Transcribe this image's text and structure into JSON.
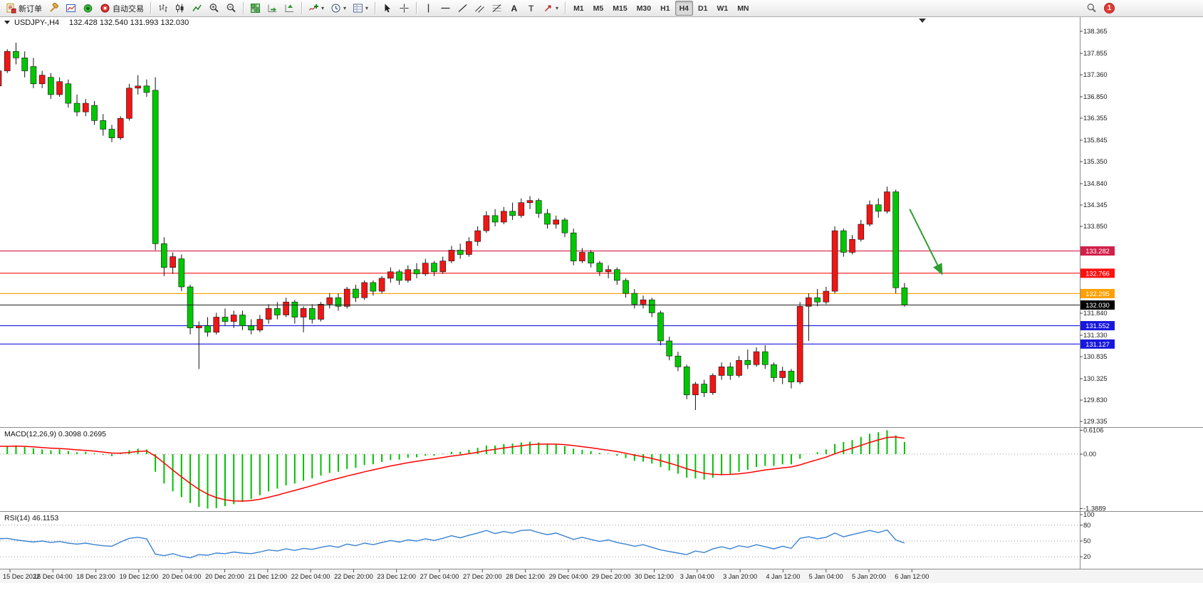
{
  "toolbar": {
    "new_order_label": "新订单",
    "auto_trading_label": "自动交易",
    "timeframes": [
      "M1",
      "M5",
      "M15",
      "M30",
      "H1",
      "H4",
      "D1",
      "W1",
      "MN"
    ],
    "active_timeframe": "H4",
    "notification_badge": "1",
    "icon_names": [
      "new-order",
      "metaeditor",
      "new-chart",
      "market-watch",
      "autotrading",
      "bar-chart",
      "candlestick-chart",
      "line-chart",
      "zoom-in",
      "zoom-out",
      "tile-windows",
      "auto-scroll",
      "chart-shift",
      "indicators",
      "periods",
      "templates",
      "cursor",
      "crosshair",
      "vertical-line",
      "horizontal-line",
      "trendline",
      "equidistant-channel",
      "fibonacci",
      "text",
      "text-label",
      "arrows",
      "search",
      "notifications"
    ]
  },
  "chart_data": {
    "type": "candlestick",
    "symbol": "USDJPY-",
    "period": "H4",
    "title_line": "USDJPY-,H4",
    "ohlc_line": "132.428 132.540 131.993 132.030",
    "ohlc_display": {
      "open": "132.428",
      "high": "132.540",
      "low": "131.993",
      "close": "132.030"
    },
    "ylim": [
      129.22,
      138.7
    ],
    "grid": false,
    "up_color": "#f01616",
    "down_color": "#00c800",
    "wick_color": "#111111",
    "price_axis_labels": [
      "138.365",
      "137.855",
      "137.360",
      "136.850",
      "136.355",
      "135.845",
      "135.350",
      "134.840",
      "134.345",
      "133.850",
      "131.840",
      "131.330",
      "130.835",
      "130.325",
      "129.830",
      "129.335"
    ],
    "price_lines": [
      {
        "price": 133.282,
        "label": "133.282",
        "color": "#d2204a"
      },
      {
        "price": 132.766,
        "label": "132.766",
        "color": "#ff1010"
      },
      {
        "price": 132.295,
        "label": "132.295",
        "color": "#ffa000"
      },
      {
        "price": 131.552,
        "label": "131.552",
        "color": "#1717dd"
      },
      {
        "price": 131.127,
        "label": "131.127",
        "color": "#1717dd"
      }
    ],
    "current_price": {
      "price": 132.03,
      "label": "132.030",
      "color": "#000000",
      "text_color": "#ffffff"
    },
    "annotation_arrow": {
      "start": {
        "bar": 104.6,
        "price": 134.25
      },
      "end": {
        "bar": 108.3,
        "price": 132.75
      },
      "color": "#2f9e2f"
    },
    "candles": [
      [
        137.1,
        137.55,
        137.0,
        137.45
      ],
      [
        137.45,
        137.95,
        137.4,
        137.9
      ],
      [
        137.9,
        138.1,
        137.6,
        137.75
      ],
      [
        137.75,
        137.9,
        137.3,
        137.45
      ],
      [
        137.55,
        137.75,
        137.05,
        137.15
      ],
      [
        137.15,
        137.45,
        137.05,
        137.35
      ],
      [
        137.3,
        137.4,
        136.8,
        136.9
      ],
      [
        136.9,
        137.3,
        136.85,
        137.2
      ],
      [
        137.15,
        137.25,
        136.6,
        136.7
      ],
      [
        136.7,
        136.9,
        136.4,
        136.5
      ],
      [
        136.5,
        136.8,
        136.4,
        136.7
      ],
      [
        136.65,
        136.75,
        136.2,
        136.3
      ],
      [
        136.3,
        136.45,
        135.95,
        136.1
      ],
      [
        136.1,
        136.2,
        135.8,
        135.9
      ],
      [
        135.9,
        136.4,
        135.85,
        136.35
      ],
      [
        136.35,
        137.15,
        136.3,
        137.05
      ],
      [
        137.05,
        137.35,
        136.9,
        137.1
      ],
      [
        137.1,
        137.25,
        136.85,
        136.95
      ],
      [
        137.0,
        137.3,
        133.3,
        133.45
      ],
      [
        133.45,
        133.6,
        132.7,
        132.9
      ],
      [
        132.9,
        133.25,
        132.75,
        133.15
      ],
      [
        133.1,
        133.2,
        132.35,
        132.45
      ],
      [
        132.45,
        132.5,
        131.35,
        131.5
      ],
      [
        131.5,
        131.65,
        130.55,
        131.55
      ],
      [
        131.55,
        131.75,
        131.3,
        131.4
      ],
      [
        131.4,
        131.85,
        131.35,
        131.75
      ],
      [
        131.75,
        131.95,
        131.55,
        131.65
      ],
      [
        131.65,
        131.9,
        131.5,
        131.8
      ],
      [
        131.8,
        131.9,
        131.45,
        131.55
      ],
      [
        131.55,
        131.7,
        131.35,
        131.45
      ],
      [
        131.45,
        131.8,
        131.4,
        131.7
      ],
      [
        131.7,
        132.05,
        131.6,
        131.95
      ],
      [
        131.95,
        132.1,
        131.7,
        131.8
      ],
      [
        131.8,
        132.2,
        131.75,
        132.1
      ],
      [
        132.1,
        132.15,
        131.6,
        131.75
      ],
      [
        131.75,
        132.0,
        131.4,
        131.95
      ],
      [
        131.95,
        132.05,
        131.6,
        131.7
      ],
      [
        131.7,
        132.1,
        131.65,
        132.05
      ],
      [
        132.05,
        132.3,
        131.95,
        132.2
      ],
      [
        132.2,
        132.3,
        131.9,
        132.0
      ],
      [
        132.0,
        132.45,
        131.95,
        132.4
      ],
      [
        132.4,
        132.5,
        132.1,
        132.2
      ],
      [
        132.2,
        132.6,
        132.15,
        132.55
      ],
      [
        132.55,
        132.6,
        132.25,
        132.35
      ],
      [
        132.35,
        132.7,
        132.3,
        132.65
      ],
      [
        132.65,
        132.9,
        132.55,
        132.8
      ],
      [
        132.8,
        132.85,
        132.5,
        132.6
      ],
      [
        132.6,
        132.95,
        132.55,
        132.85
      ],
      [
        132.85,
        133.0,
        132.65,
        132.75
      ],
      [
        132.75,
        133.1,
        132.7,
        133.0
      ],
      [
        133.0,
        133.05,
        132.7,
        132.8
      ],
      [
        132.8,
        133.15,
        132.75,
        133.05
      ],
      [
        133.05,
        133.4,
        133.0,
        133.3
      ],
      [
        133.3,
        133.45,
        133.1,
        133.2
      ],
      [
        133.2,
        133.6,
        133.15,
        133.5
      ],
      [
        133.5,
        133.85,
        133.4,
        133.75
      ],
      [
        133.75,
        134.2,
        133.7,
        134.1
      ],
      [
        134.1,
        134.25,
        133.85,
        133.95
      ],
      [
        133.95,
        134.3,
        133.9,
        134.2
      ],
      [
        134.2,
        134.4,
        134.0,
        134.1
      ],
      [
        134.1,
        134.5,
        134.05,
        134.4
      ],
      [
        134.4,
        134.55,
        134.25,
        134.45
      ],
      [
        134.45,
        134.5,
        134.05,
        134.15
      ],
      [
        134.15,
        134.25,
        133.8,
        133.9
      ],
      [
        133.9,
        134.1,
        133.8,
        134.0
      ],
      [
        134.0,
        134.05,
        133.6,
        133.7
      ],
      [
        133.7,
        133.8,
        132.95,
        133.05
      ],
      [
        133.05,
        133.35,
        133.0,
        133.25
      ],
      [
        133.25,
        133.3,
        132.9,
        133.0
      ],
      [
        133.0,
        133.05,
        132.7,
        132.8
      ],
      [
        132.8,
        132.95,
        132.65,
        132.85
      ],
      [
        132.85,
        132.9,
        132.5,
        132.6
      ],
      [
        132.6,
        132.65,
        132.2,
        132.3
      ],
      [
        132.3,
        132.4,
        131.95,
        132.05
      ],
      [
        132.05,
        132.25,
        131.95,
        132.15
      ],
      [
        132.15,
        132.2,
        131.75,
        131.85
      ],
      [
        131.85,
        131.9,
        131.1,
        131.2
      ],
      [
        131.2,
        131.3,
        130.75,
        130.85
      ],
      [
        130.85,
        130.95,
        130.5,
        130.6
      ],
      [
        130.6,
        130.65,
        129.85,
        129.95
      ],
      [
        129.95,
        130.25,
        129.6,
        130.2
      ],
      [
        130.2,
        130.3,
        129.9,
        130.0
      ],
      [
        130.0,
        130.45,
        129.95,
        130.4
      ],
      [
        130.4,
        130.7,
        130.3,
        130.6
      ],
      [
        130.6,
        130.7,
        130.3,
        130.4
      ],
      [
        130.4,
        130.85,
        130.35,
        130.75
      ],
      [
        130.75,
        131.0,
        130.55,
        130.65
      ],
      [
        130.65,
        131.05,
        130.6,
        130.95
      ],
      [
        130.95,
        131.1,
        130.55,
        130.65
      ],
      [
        130.65,
        130.7,
        130.25,
        130.35
      ],
      [
        130.35,
        130.6,
        130.2,
        130.5
      ],
      [
        130.5,
        130.55,
        130.1,
        130.25
      ],
      [
        130.25,
        132.1,
        130.2,
        132.0
      ],
      [
        132.0,
        132.3,
        131.2,
        132.2
      ],
      [
        132.2,
        132.4,
        132.0,
        132.1
      ],
      [
        132.1,
        132.45,
        132.05,
        132.35
      ],
      [
        132.35,
        133.85,
        132.3,
        133.75
      ],
      [
        133.75,
        133.8,
        133.15,
        133.25
      ],
      [
        133.25,
        133.65,
        133.2,
        133.55
      ],
      [
        133.55,
        134.0,
        133.5,
        133.9
      ],
      [
        133.9,
        134.45,
        133.85,
        134.35
      ],
      [
        134.35,
        134.5,
        134.05,
        134.2
      ],
      [
        134.2,
        134.77,
        134.15,
        134.65
      ],
      [
        134.65,
        134.7,
        132.3,
        132.43
      ],
      [
        132.428,
        132.54,
        131.993,
        132.03
      ]
    ],
    "macd": {
      "label": "MACD(12,26,9) 0.3098 0.2695",
      "histogram_color": "#00c000",
      "signal_color": "#ff0000",
      "ylim": [
        -1.3889,
        0.6106
      ],
      "axis": [
        {
          "text": "0.6106",
          "value": 0.6106
        },
        {
          "text": "0.00",
          "value": 0
        },
        {
          "text": "-1.3889",
          "value": -1.3889
        }
      ],
      "values": [
        0.2,
        0.2,
        0.22,
        0.18,
        0.15,
        0.12,
        0.1,
        0.12,
        0.08,
        0.05,
        0.06,
        0.02,
        -0.02,
        -0.05,
        0.02,
        0.1,
        0.14,
        0.12,
        -0.45,
        -0.75,
        -0.95,
        -1.1,
        -1.25,
        -1.35,
        -1.39,
        -1.38,
        -1.33,
        -1.28,
        -1.22,
        -1.15,
        -1.05,
        -0.95,
        -0.88,
        -0.8,
        -0.75,
        -0.68,
        -0.62,
        -0.55,
        -0.48,
        -0.45,
        -0.38,
        -0.35,
        -0.28,
        -0.26,
        -0.2,
        -0.15,
        -0.14,
        -0.09,
        -0.08,
        -0.04,
        -0.04,
        0.01,
        0.06,
        0.06,
        0.11,
        0.16,
        0.22,
        0.22,
        0.26,
        0.27,
        0.3,
        0.32,
        0.3,
        0.26,
        0.25,
        0.21,
        0.14,
        0.11,
        0.08,
        0.03,
        0.01,
        -0.04,
        -0.1,
        -0.17,
        -0.19,
        -0.24,
        -0.33,
        -0.42,
        -0.5,
        -0.6,
        -0.62,
        -0.65,
        -0.6,
        -0.54,
        -0.51,
        -0.45,
        -0.4,
        -0.33,
        -0.3,
        -0.3,
        -0.26,
        -0.26,
        -0.12,
        0.0,
        0.05,
        0.12,
        0.26,
        0.31,
        0.36,
        0.44,
        0.52,
        0.56,
        0.61,
        0.48,
        0.31
      ]
    },
    "rsi": {
      "label": "RSI(14) 46.1153",
      "color": "#3b82d0",
      "ylim": [
        0,
        100
      ],
      "levels": [
        80,
        50,
        20
      ],
      "axis": [
        {
          "text": "100",
          "value": 100
        },
        {
          "text": "80",
          "value": 80
        },
        {
          "text": "50",
          "value": 50
        },
        {
          "text": "20",
          "value": 20
        }
      ],
      "values": [
        54,
        55,
        52,
        50,
        48,
        50,
        47,
        49,
        46,
        44,
        46,
        43,
        41,
        40,
        48,
        55,
        57,
        54,
        25,
        22,
        26,
        21,
        18,
        24,
        23,
        27,
        26,
        29,
        27,
        26,
        29,
        33,
        31,
        35,
        32,
        36,
        34,
        38,
        41,
        38,
        44,
        41,
        46,
        43,
        47,
        51,
        48,
        52,
        50,
        54,
        51,
        55,
        60,
        56,
        61,
        65,
        70,
        64,
        68,
        65,
        70,
        71,
        66,
        62,
        65,
        59,
        53,
        57,
        53,
        49,
        52,
        47,
        44,
        40,
        43,
        38,
        33,
        30,
        27,
        24,
        31,
        28,
        35,
        39,
        35,
        41,
        38,
        43,
        39,
        35,
        40,
        36,
        55,
        58,
        54,
        57,
        65,
        58,
        62,
        66,
        70,
        66,
        71,
        52,
        46.1
      ]
    },
    "time_axis_labels": [
      "15 Dec 2022",
      "16 Dec 04:00",
      "18 Dec 23:00",
      "19 Dec 12:00",
      "20 Dec 04:00",
      "20 Dec 20:00",
      "21 Dec 12:00",
      "22 Dec 04:00",
      "22 Dec 20:00",
      "23 Dec 12:00",
      "27 Dec 04:00",
      "27 Dec 20:00",
      "28 Dec 12:00",
      "29 Dec 04:00",
      "29 Dec 20:00",
      "30 Dec 12:00",
      "3 Jan 04:00",
      "3 Jan 20:00",
      "4 Jan 12:00",
      "5 Jan 04:00",
      "5 Jan 20:00",
      "6 Jan 12:00"
    ]
  }
}
